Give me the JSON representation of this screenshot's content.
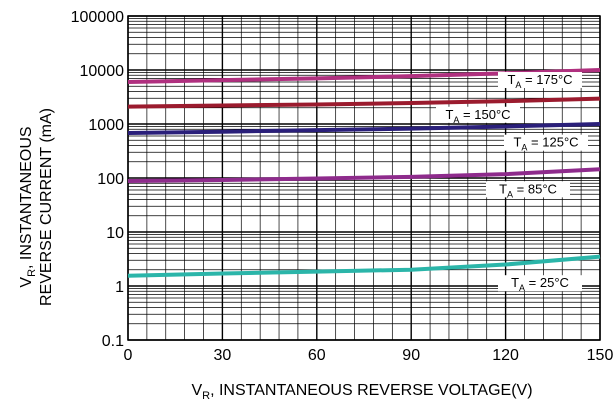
{
  "chart_data": {
    "type": "line",
    "xlabel": {
      "main": "V",
      "sub": "R",
      "rest": ", INSTANTANEOUS REVERSE VOLTAGE(V)"
    },
    "ylabel": {
      "line1_main": "V",
      "line1_sub": "R",
      "line1_rest": ", INSTANTANEOUS",
      "line2": "REVERSE CURRENT (mA)"
    },
    "xlim": [
      0,
      150
    ],
    "ylim": [
      0.1,
      100000
    ],
    "y_scale": "log",
    "x_ticks": [
      0,
      30,
      60,
      90,
      120,
      150
    ],
    "x_tick_labels": [
      "0",
      "30",
      "60",
      "90",
      "120",
      "150"
    ],
    "y_ticks": [
      0.1,
      1,
      10,
      100,
      1000,
      10000,
      100000
    ],
    "y_tick_labels": [
      "0.1",
      "1",
      "10",
      "100",
      "1000",
      "10000",
      "100000"
    ],
    "grid": true,
    "x": [
      0,
      30,
      60,
      90,
      120,
      150
    ],
    "series": [
      {
        "label_main": "T",
        "label_sub": "A",
        "label_rest": " = 175°C",
        "color": "#b0307f",
        "values": [
          6000,
          6500,
          7000,
          7700,
          8700,
          10000
        ]
      },
      {
        "label_main": "T",
        "label_sub": "A",
        "label_rest": " = 150°C",
        "color": "#9b1b2e",
        "values": [
          2100,
          2200,
          2300,
          2450,
          2650,
          2950
        ]
      },
      {
        "label_main": "T",
        "label_sub": "A",
        "label_rest": " = 125°C",
        "color": "#2a1f7a",
        "values": [
          680,
          720,
          770,
          820,
          900,
          1000
        ]
      },
      {
        "label_main": "T",
        "label_sub": "A",
        "label_rest": " = 85°C",
        "color": "#8e2b8c",
        "values": [
          88,
          92,
          98,
          105,
          118,
          145
        ]
      },
      {
        "label_main": "T",
        "label_sub": "A",
        "label_rest": " = 25°C",
        "color": "#2bb5a9",
        "values": [
          1.55,
          1.7,
          1.85,
          2.0,
          2.5,
          3.5
        ]
      }
    ]
  }
}
